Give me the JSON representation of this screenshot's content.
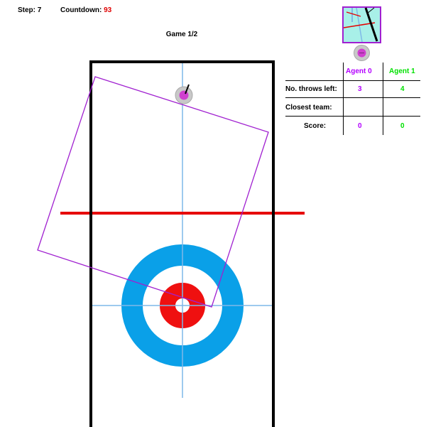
{
  "hud": {
    "step_label": "Step:",
    "step_value": "7",
    "countdown_label": "Countdown:",
    "countdown_value": "93",
    "countdown_color": "#e00000"
  },
  "game_label": "Game 1/2",
  "scoreboard": {
    "agents": [
      {
        "name": "Agent 0",
        "throws_left": "3",
        "score": "0",
        "color": "#b400ff"
      },
      {
        "name": "Agent 1",
        "throws_left": "4",
        "score": "0",
        "color": "#00e000"
      }
    ],
    "rows": {
      "throws_left_label": "No. throws left:",
      "closest_team_label": "Closest team:",
      "score_label": "Score:"
    }
  },
  "colors": {
    "sheet_border": "#000000",
    "hog_line": "#e60000",
    "center_lines": "#7fb8e8",
    "house_outer": "#0aa0e8",
    "house_red": "#ef1010",
    "stone_agent0": "#d040d0",
    "selection_box": "#a020d0"
  },
  "icons": [
    "stone-icon",
    "minimap-icon"
  ]
}
